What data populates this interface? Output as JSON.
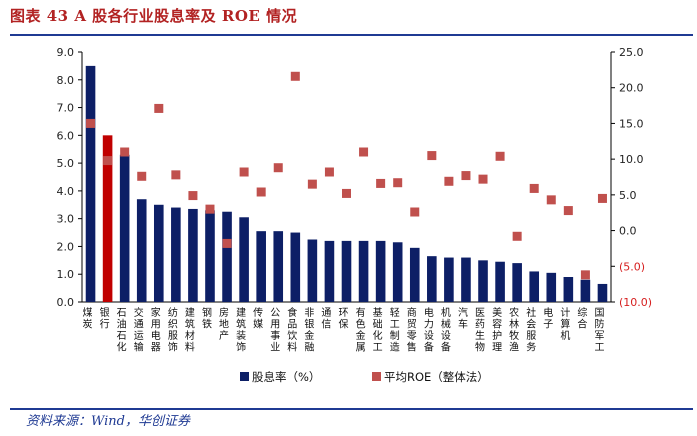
{
  "header": {
    "title": "图表 43 A 股各行业股息率及 ROE 情况"
  },
  "footer": {
    "source": "资料来源：Wind，华创证券"
  },
  "chart_data": {
    "type": "bar",
    "categories": [
      "煤炭",
      "银行",
      "石油石化",
      "交通运输",
      "家用电器",
      "纺织服饰",
      "建筑材料",
      "钢铁",
      "房地产",
      "建筑装饰",
      "传媒",
      "公用事业",
      "食品饮料",
      "非银金融",
      "通信",
      "环保",
      "有色金属",
      "基础化工",
      "轻工制造",
      "商贸零售",
      "电力设备",
      "机械设备",
      "汽车",
      "医药生物",
      "美容护理",
      "农林牧渔",
      "社会服务",
      "电子",
      "计算机",
      "综合",
      "国防军工"
    ],
    "series": [
      {
        "name": "股息率（%）",
        "type": "bar",
        "axis": "left",
        "color": "#0d1f66",
        "values": [
          8.5,
          6.0,
          5.3,
          3.7,
          3.5,
          3.4,
          3.35,
          3.3,
          3.25,
          3.05,
          2.55,
          2.55,
          2.5,
          2.25,
          2.2,
          2.2,
          2.2,
          2.2,
          2.15,
          1.95,
          1.65,
          1.6,
          1.6,
          1.5,
          1.45,
          1.4,
          1.1,
          1.05,
          0.9,
          0.8,
          0.65
        ]
      },
      {
        "name": "平均ROE（整体法）",
        "type": "scatter",
        "axis": "right",
        "color": "#c0504d",
        "values": [
          15.0,
          9.8,
          11.0,
          7.6,
          17.1,
          7.8,
          4.9,
          3.0,
          -1.8,
          8.2,
          5.4,
          8.8,
          21.6,
          6.5,
          8.2,
          5.2,
          11.0,
          6.6,
          6.7,
          2.6,
          10.5,
          6.9,
          7.7,
          7.2,
          10.4,
          -0.8,
          5.9,
          4.3,
          2.8,
          -6.2,
          4.5
        ]
      }
    ],
    "highlight_color": "#c00000",
    "highlight_index": 1,
    "y_left": {
      "ylim": [
        0,
        9
      ],
      "ticks": [
        "0.0",
        "1.0",
        "2.0",
        "3.0",
        "4.0",
        "5.0",
        "6.0",
        "7.0",
        "8.0",
        "9.0"
      ]
    },
    "y_right": {
      "ylim": [
        -10,
        25
      ],
      "ticks": [
        "(10.0)",
        "(5.0)",
        "0.0",
        "5.0",
        "10.0",
        "15.0",
        "20.0",
        "25.0"
      ]
    },
    "legend": {
      "position": "bottom",
      "items": [
        "股息率（%）",
        "平均ROE（整体法）"
      ]
    }
  }
}
